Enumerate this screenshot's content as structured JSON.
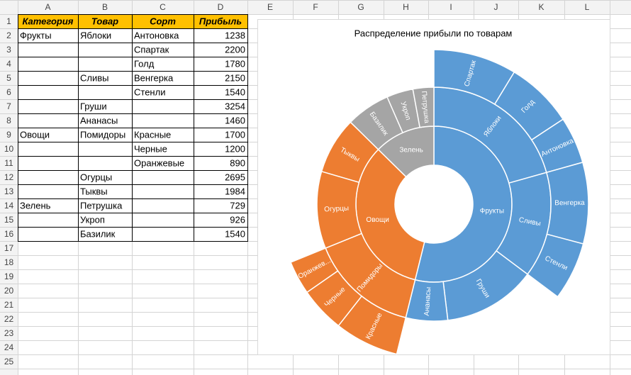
{
  "spreadsheet": {
    "columns": [
      "A",
      "B",
      "C",
      "D",
      "E",
      "F",
      "G",
      "H",
      "I",
      "J",
      "K",
      "L"
    ],
    "row_numbers": [
      1,
      2,
      3,
      4,
      5,
      6,
      7,
      8,
      9,
      10,
      11,
      12,
      13,
      14,
      15,
      16,
      17,
      18,
      19,
      20,
      21,
      22,
      23,
      24,
      25
    ],
    "header": [
      "Категория",
      "Товар",
      "Сорт",
      "Прибыль"
    ],
    "rows": [
      [
        "Фрукты",
        "Яблоки",
        "Антоновка",
        1238
      ],
      [
        null,
        null,
        "Спартак",
        2200
      ],
      [
        null,
        null,
        "Голд",
        1780
      ],
      [
        null,
        "Сливы",
        "Венгерка",
        2150
      ],
      [
        null,
        null,
        "Стенли",
        1540
      ],
      [
        null,
        "Груши",
        null,
        3254
      ],
      [
        null,
        "Ананасы",
        null,
        1460
      ],
      [
        "Овощи",
        "Помидоры",
        "Красные",
        1700
      ],
      [
        null,
        null,
        "Черные",
        1200
      ],
      [
        null,
        null,
        "Оранжевые",
        890
      ],
      [
        null,
        "Огурцы",
        null,
        2695
      ],
      [
        null,
        "Тыквы",
        null,
        1984
      ],
      [
        "Зелень",
        "Петрушка",
        null,
        729
      ],
      [
        null,
        "Укроп",
        null,
        926
      ],
      [
        null,
        "Базилик",
        null,
        1540
      ]
    ]
  },
  "chart_data": {
    "type": "sunburst",
    "title": "Распределение прибыли по товарам",
    "nodes": [
      {
        "name": "Фрукты",
        "color": "#5b9bd5",
        "children": [
          {
            "name": "Яблоки",
            "children": [
              {
                "name": "Спартак",
                "value": 2200
              },
              {
                "name": "Голд",
                "value": 1780
              },
              {
                "name": "Антоновка",
                "value": 1238
              }
            ]
          },
          {
            "name": "Сливы",
            "children": [
              {
                "name": "Венгерка",
                "value": 2150
              },
              {
                "name": "Стенли",
                "value": 1540
              }
            ]
          },
          {
            "name": "Груши",
            "value": 3254
          },
          {
            "name": "Ананасы",
            "value": 1460
          }
        ]
      },
      {
        "name": "Овощи",
        "color": "#ed7d31",
        "children": [
          {
            "name": "Помидоры",
            "children": [
              {
                "name": "Красные",
                "value": 1700
              },
              {
                "name": "Черные",
                "value": 1200
              },
              {
                "name": "Оранжев...",
                "value": 890
              }
            ]
          },
          {
            "name": "Огурцы",
            "value": 2695
          },
          {
            "name": "Тыквы",
            "value": 1984
          }
        ]
      },
      {
        "name": "Зелень",
        "color": "#a5a5a5",
        "children": [
          {
            "name": "Базилик",
            "value": 1540
          },
          {
            "name": "Укроп",
            "value": 926
          },
          {
            "name": "Петрушка",
            "value": 729
          }
        ]
      }
    ]
  }
}
